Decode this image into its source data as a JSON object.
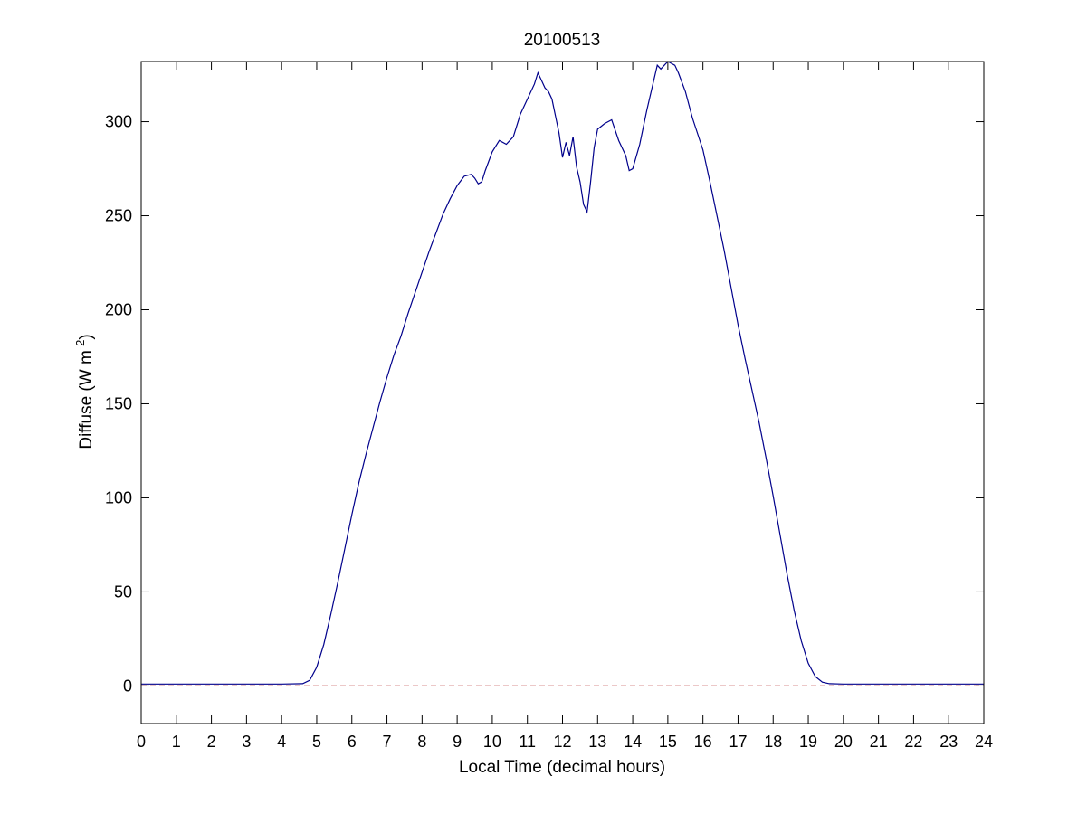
{
  "chart_data": {
    "type": "line",
    "title": "20100513",
    "xlabel": "Local Time (decimal hours)",
    "ylabel": "Diffuse (W m",
    "ylabel_exponent": "-2",
    "ylabel_close": ")",
    "xlim": [
      0,
      24
    ],
    "ylim": [
      -20,
      332
    ],
    "xticks": [
      "0",
      "1",
      "2",
      "3",
      "4",
      "5",
      "6",
      "7",
      "8",
      "9",
      "10",
      "11",
      "12",
      "13",
      "14",
      "15",
      "16",
      "17",
      "18",
      "19",
      "20",
      "21",
      "22",
      "23",
      "24"
    ],
    "yticks": [
      "0",
      "50",
      "100",
      "150",
      "200",
      "250",
      "300"
    ],
    "grid": false,
    "legend": "none",
    "series": [
      {
        "color": "#00008b",
        "style": "solid",
        "points": [
          [
            0,
            1
          ],
          [
            1,
            1
          ],
          [
            2,
            1
          ],
          [
            3,
            1
          ],
          [
            4,
            1
          ],
          [
            4.6,
            1.2
          ],
          [
            4.8,
            3
          ],
          [
            5.0,
            10
          ],
          [
            5.2,
            22
          ],
          [
            5.4,
            38
          ],
          [
            5.6,
            55
          ],
          [
            5.8,
            73
          ],
          [
            6.0,
            91
          ],
          [
            6.2,
            108
          ],
          [
            6.4,
            123
          ],
          [
            6.6,
            137
          ],
          [
            6.8,
            151
          ],
          [
            7.0,
            164
          ],
          [
            7.2,
            176
          ],
          [
            7.4,
            186
          ],
          [
            7.6,
            198
          ],
          [
            7.8,
            209
          ],
          [
            8.0,
            220
          ],
          [
            8.2,
            231
          ],
          [
            8.4,
            241
          ],
          [
            8.6,
            251
          ],
          [
            8.8,
            259
          ],
          [
            9.0,
            266
          ],
          [
            9.2,
            271
          ],
          [
            9.4,
            272
          ],
          [
            9.5,
            270
          ],
          [
            9.6,
            267
          ],
          [
            9.7,
            268
          ],
          [
            9.8,
            274
          ],
          [
            10.0,
            284
          ],
          [
            10.2,
            290
          ],
          [
            10.4,
            288
          ],
          [
            10.6,
            292
          ],
          [
            10.8,
            304
          ],
          [
            11.0,
            312
          ],
          [
            11.2,
            320
          ],
          [
            11.3,
            326
          ],
          [
            11.4,
            322
          ],
          [
            11.5,
            318
          ],
          [
            11.6,
            316
          ],
          [
            11.7,
            312
          ],
          [
            11.8,
            303
          ],
          [
            11.9,
            294
          ],
          [
            12.0,
            281
          ],
          [
            12.1,
            289
          ],
          [
            12.2,
            282
          ],
          [
            12.3,
            292
          ],
          [
            12.4,
            276
          ],
          [
            12.5,
            268
          ],
          [
            12.6,
            256
          ],
          [
            12.7,
            252
          ],
          [
            12.8,
            268
          ],
          [
            12.9,
            286
          ],
          [
            13.0,
            296
          ],
          [
            13.2,
            299
          ],
          [
            13.4,
            301
          ],
          [
            13.6,
            290
          ],
          [
            13.8,
            282
          ],
          [
            13.9,
            274
          ],
          [
            14.0,
            275
          ],
          [
            14.2,
            288
          ],
          [
            14.4,
            306
          ],
          [
            14.6,
            322
          ],
          [
            14.7,
            330
          ],
          [
            14.8,
            328
          ],
          [
            15.0,
            332
          ],
          [
            15.2,
            330
          ],
          [
            15.3,
            326
          ],
          [
            15.5,
            316
          ],
          [
            15.7,
            302
          ],
          [
            16.0,
            285
          ],
          [
            16.2,
            268
          ],
          [
            16.4,
            250
          ],
          [
            16.6,
            232
          ],
          [
            16.8,
            212
          ],
          [
            17.0,
            192
          ],
          [
            17.2,
            174
          ],
          [
            17.4,
            157
          ],
          [
            17.6,
            140
          ],
          [
            17.8,
            121
          ],
          [
            18.0,
            101
          ],
          [
            18.2,
            80
          ],
          [
            18.4,
            59
          ],
          [
            18.6,
            40
          ],
          [
            18.8,
            24
          ],
          [
            19.0,
            12
          ],
          [
            19.2,
            5
          ],
          [
            19.4,
            2
          ],
          [
            19.6,
            1.2
          ],
          [
            20,
            1
          ],
          [
            21,
            1
          ],
          [
            22,
            1
          ],
          [
            23,
            1
          ],
          [
            24,
            1
          ]
        ]
      },
      {
        "color": "#b22222",
        "style": "dashed",
        "points": [
          [
            0,
            0
          ],
          [
            24,
            0
          ]
        ]
      }
    ]
  }
}
